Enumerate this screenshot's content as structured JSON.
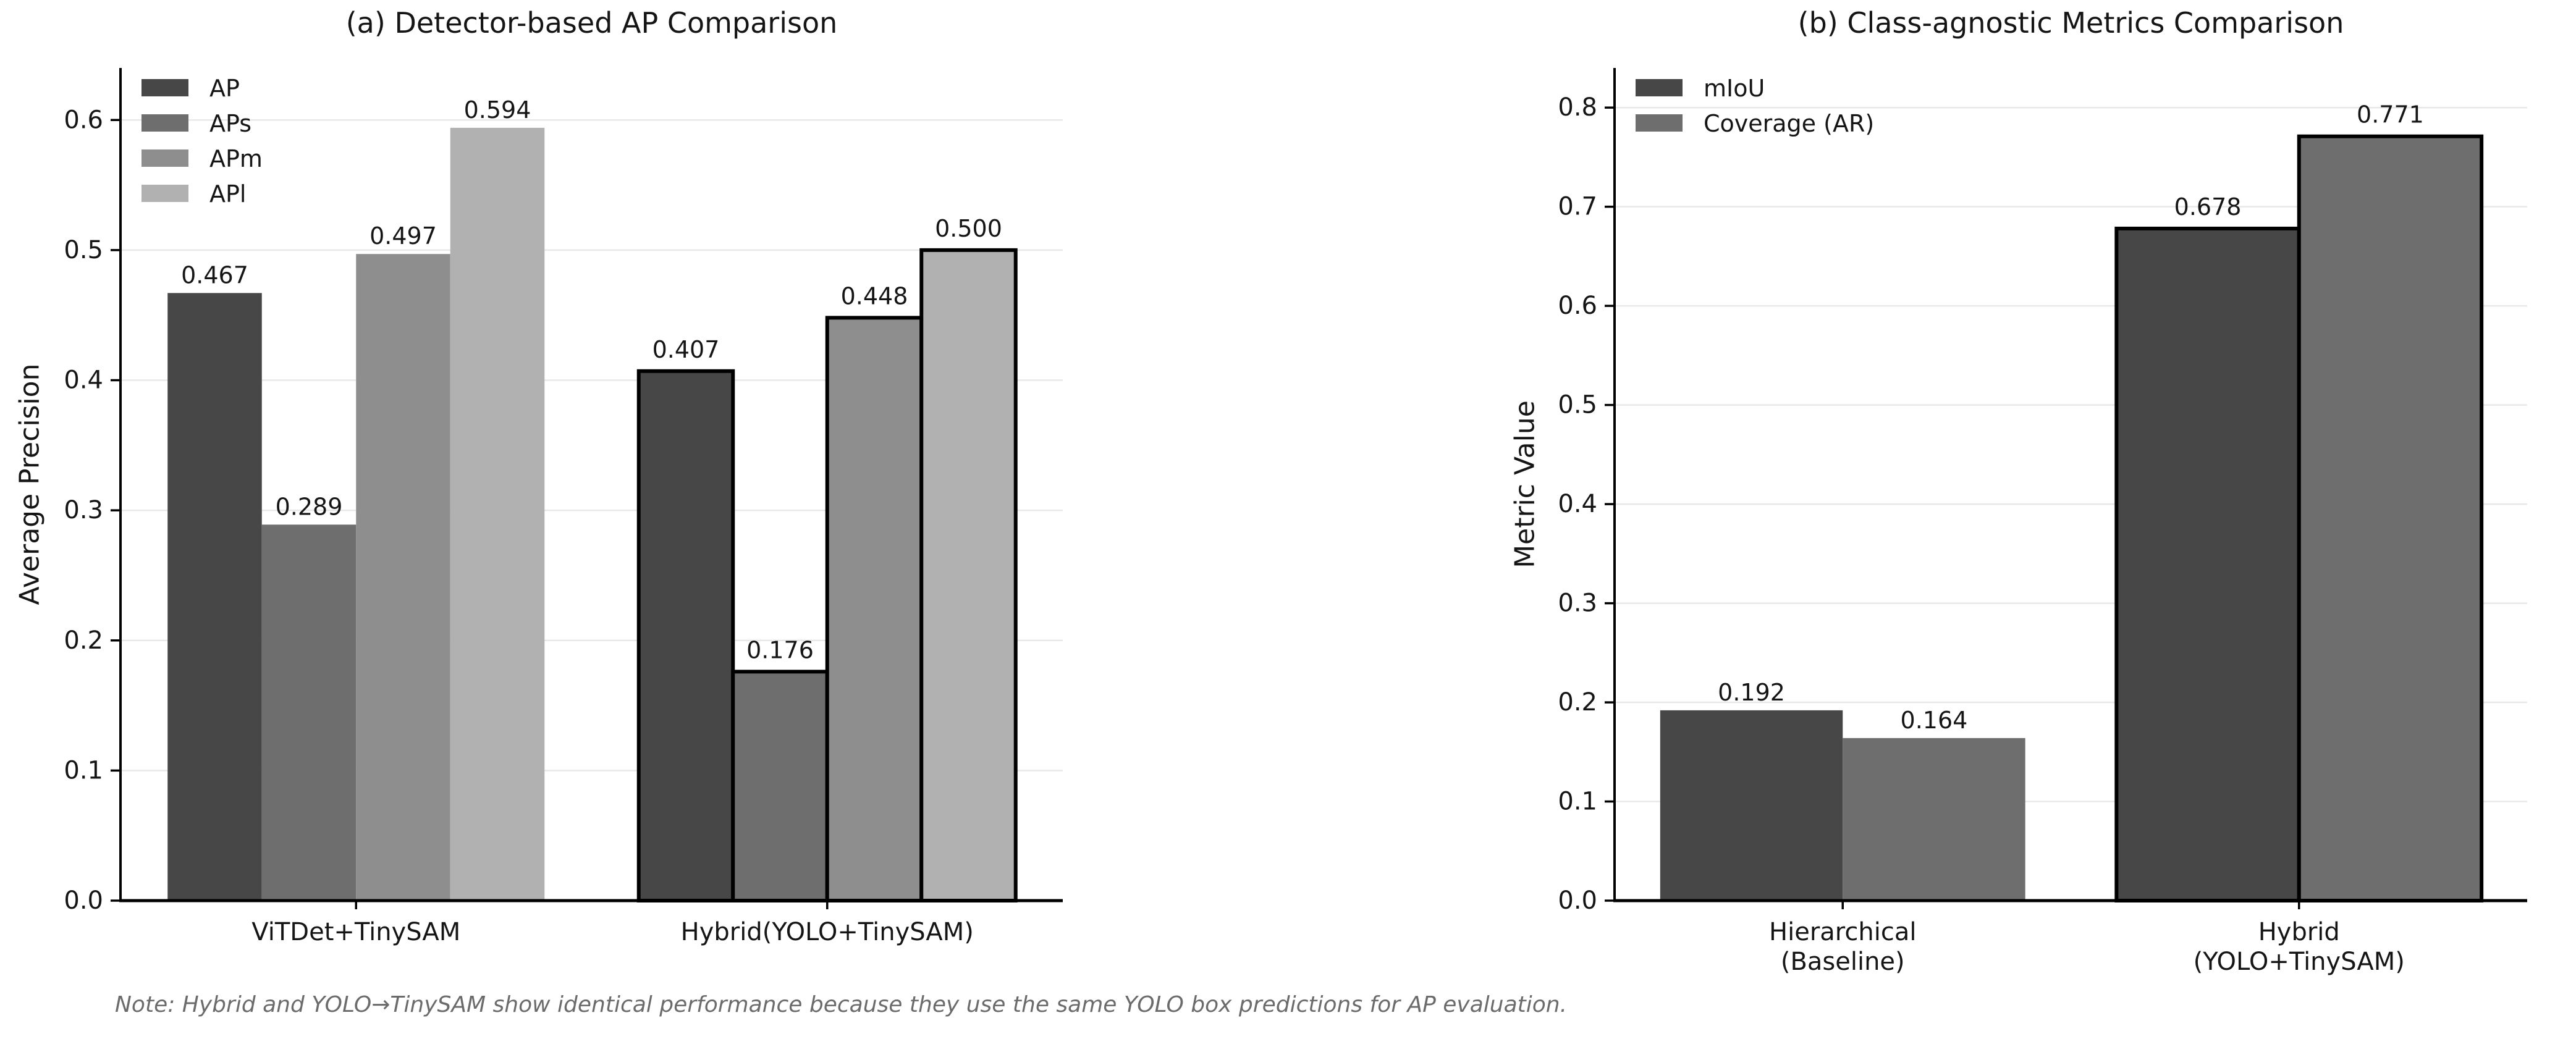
{
  "figure": {
    "background": "#ffffff",
    "note": "Note: Hybrid and YOLO→TinySAM show identical performance because they use the same YOLO box predictions for AP evaluation.",
    "note_color": "#6b6b6b"
  },
  "chart_data": [
    {
      "id": "chart-a",
      "type": "bar",
      "title": "(a) Detector-based AP Comparison",
      "xlabel": "",
      "ylabel": "Average Precision",
      "categories": [
        "ViTDet+TinySAM",
        "Hybrid(YOLO+TinySAM)"
      ],
      "series": [
        {
          "name": "AP",
          "color": "#474747",
          "values": [
            0.467,
            0.407
          ]
        },
        {
          "name": "APs",
          "color": "#6e6e6e",
          "values": [
            0.289,
            0.176
          ]
        },
        {
          "name": "APm",
          "color": "#8e8e8e",
          "values": [
            0.497,
            0.448
          ]
        },
        {
          "name": "APl",
          "color": "#b1b1b1",
          "values": [
            0.594,
            0.5
          ]
        }
      ],
      "value_labels": [
        [
          "0.467",
          "0.289",
          "0.497",
          "0.594"
        ],
        [
          "0.407",
          "0.176",
          "0.448",
          "0.500"
        ]
      ],
      "ylim": [
        0,
        0.64
      ],
      "yticks": [
        "0.0",
        "0.1",
        "0.2",
        "0.3",
        "0.4",
        "0.5",
        "0.6"
      ],
      "grid": true,
      "grid_color": "#e8e8e8",
      "legend_position": "upper left",
      "legend_entries": [
        "AP",
        "APs",
        "APm",
        "APl"
      ],
      "outlined_group_index": 1,
      "outline_color": "#000000"
    },
    {
      "id": "chart-b",
      "type": "bar",
      "title": "(b) Class-agnostic Metrics Comparison",
      "xlabel": "",
      "ylabel": "Metric Value",
      "categories": [
        "Hierarchical\n(Baseline)",
        "Hybrid\n(YOLO+TinySAM)"
      ],
      "series": [
        {
          "name": "mIoU",
          "color": "#474747",
          "values": [
            0.192,
            0.678
          ]
        },
        {
          "name": "Coverage (AR)",
          "color": "#6e6e6e",
          "values": [
            0.164,
            0.771
          ]
        }
      ],
      "value_labels": [
        [
          "0.192",
          "0.164"
        ],
        [
          "0.678",
          "0.771"
        ]
      ],
      "ylim": [
        0,
        0.84
      ],
      "yticks": [
        "0.0",
        "0.1",
        "0.2",
        "0.3",
        "0.4",
        "0.5",
        "0.6",
        "0.7",
        "0.8"
      ],
      "grid": true,
      "grid_color": "#e8e8e8",
      "legend_position": "upper left",
      "legend_entries": [
        "mIoU",
        "Coverage (AR)"
      ],
      "outlined_group_index": 1,
      "outline_color": "#000000"
    }
  ]
}
